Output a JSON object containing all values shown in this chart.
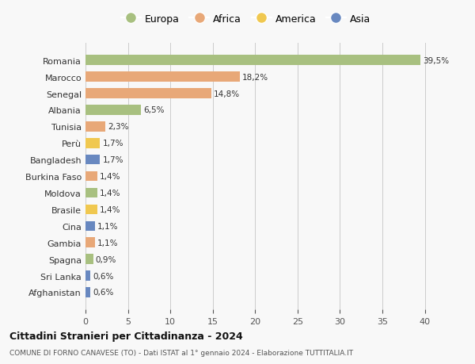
{
  "countries": [
    "Romania",
    "Marocco",
    "Senegal",
    "Albania",
    "Tunisia",
    "Perù",
    "Bangladesh",
    "Burkina Faso",
    "Moldova",
    "Brasile",
    "Cina",
    "Gambia",
    "Spagna",
    "Sri Lanka",
    "Afghanistan"
  ],
  "values": [
    39.5,
    18.2,
    14.8,
    6.5,
    2.3,
    1.7,
    1.7,
    1.4,
    1.4,
    1.4,
    1.1,
    1.1,
    0.9,
    0.6,
    0.6
  ],
  "labels": [
    "39,5%",
    "18,2%",
    "14,8%",
    "6,5%",
    "2,3%",
    "1,7%",
    "1,7%",
    "1,4%",
    "1,4%",
    "1,4%",
    "1,1%",
    "1,1%",
    "0,9%",
    "0,6%",
    "0,6%"
  ],
  "continents": [
    "Europa",
    "Africa",
    "Africa",
    "Europa",
    "Africa",
    "America",
    "Asia",
    "Africa",
    "Europa",
    "America",
    "Asia",
    "Africa",
    "Europa",
    "Asia",
    "Asia"
  ],
  "continent_colors": {
    "Europa": "#a8c080",
    "Africa": "#e8a878",
    "America": "#f0c850",
    "Asia": "#6888c0"
  },
  "legend_order": [
    "Europa",
    "Africa",
    "America",
    "Asia"
  ],
  "title": "Cittadini Stranieri per Cittadinanza - 2024",
  "subtitle": "COMUNE DI FORNO CANAVESE (TO) - Dati ISTAT al 1° gennaio 2024 - Elaborazione TUTTITALIA.IT",
  "xlim": [
    0,
    42
  ],
  "xticks": [
    0,
    5,
    10,
    15,
    20,
    25,
    30,
    35,
    40
  ],
  "background_color": "#f8f8f8",
  "grid_color": "#cccccc",
  "bar_height": 0.6
}
